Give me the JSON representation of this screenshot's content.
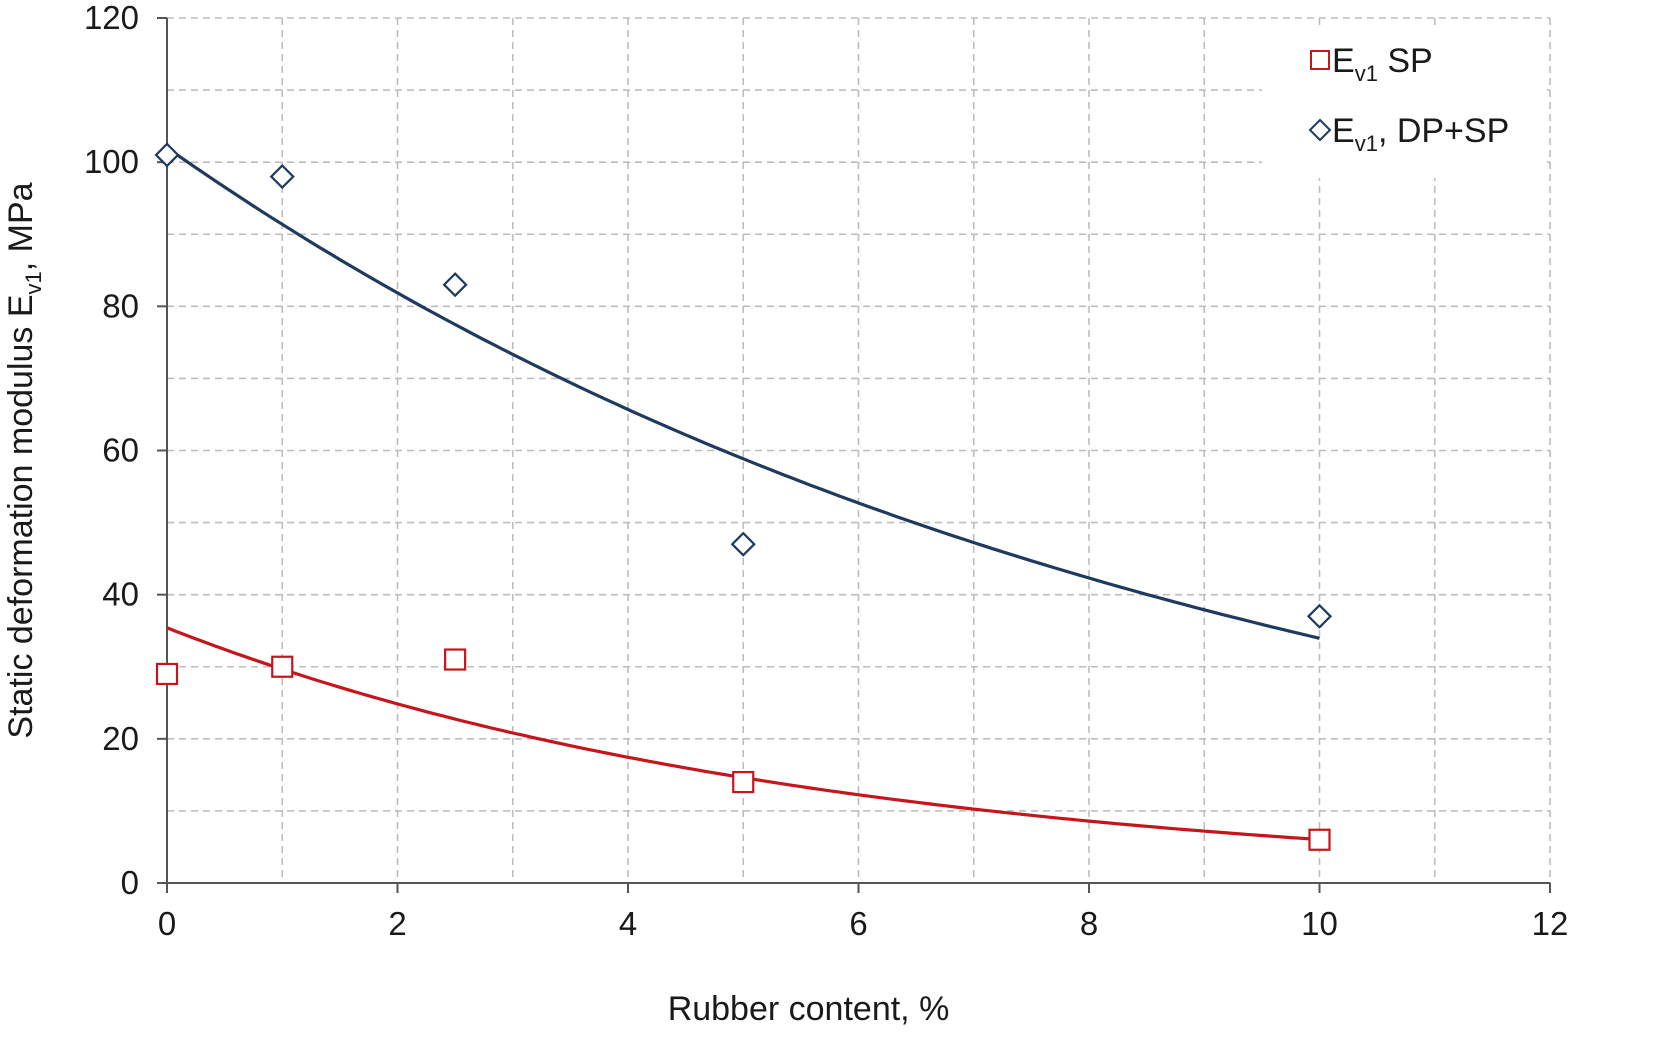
{
  "chart_data": {
    "type": "scatter",
    "title": "",
    "xlabel": "Rubber content, %",
    "ylabel": {
      "main": "Static deformation modulus E",
      "sub": "v1",
      "tail": ", MPa"
    },
    "xlim": [
      0,
      12
    ],
    "ylim": [
      0,
      120
    ],
    "x_ticks": [
      0,
      2,
      4,
      6,
      8,
      10,
      12
    ],
    "y_ticks": [
      0,
      20,
      40,
      60,
      80,
      100,
      120
    ],
    "x_minor_grid": [
      1,
      3,
      5,
      7,
      9,
      11
    ],
    "y_minor_grid": [
      10,
      30,
      50,
      70,
      90,
      110
    ],
    "grid": true,
    "grid_style": "dashed",
    "legend_position": "top-right",
    "series": [
      {
        "name": {
          "main": "E",
          "sub": "v1",
          "tail": " SP"
        },
        "marker": "square",
        "color": "#c4161c",
        "points": [
          {
            "x": 0,
            "y": 29
          },
          {
            "x": 1,
            "y": 30
          },
          {
            "x": 2.5,
            "y": 31
          },
          {
            "x": 5,
            "y": 14
          },
          {
            "x": 10,
            "y": 6
          }
        ],
        "trendline": {
          "type": "exponential",
          "a": 35.4,
          "b": -0.177,
          "x_range": [
            0,
            10
          ]
        }
      },
      {
        "name": {
          "main": "E",
          "sub": "v1",
          "tail": ", DP+SP"
        },
        "marker": "diamond",
        "color": "#1f3a5f",
        "points": [
          {
            "x": 0,
            "y": 101
          },
          {
            "x": 1,
            "y": 98
          },
          {
            "x": 2.5,
            "y": 83
          },
          {
            "x": 5,
            "y": 47
          },
          {
            "x": 10,
            "y": 37
          }
        ],
        "trendline": {
          "type": "exponential",
          "a": 102,
          "b": -0.11,
          "x_range": [
            0,
            10
          ]
        }
      }
    ]
  }
}
